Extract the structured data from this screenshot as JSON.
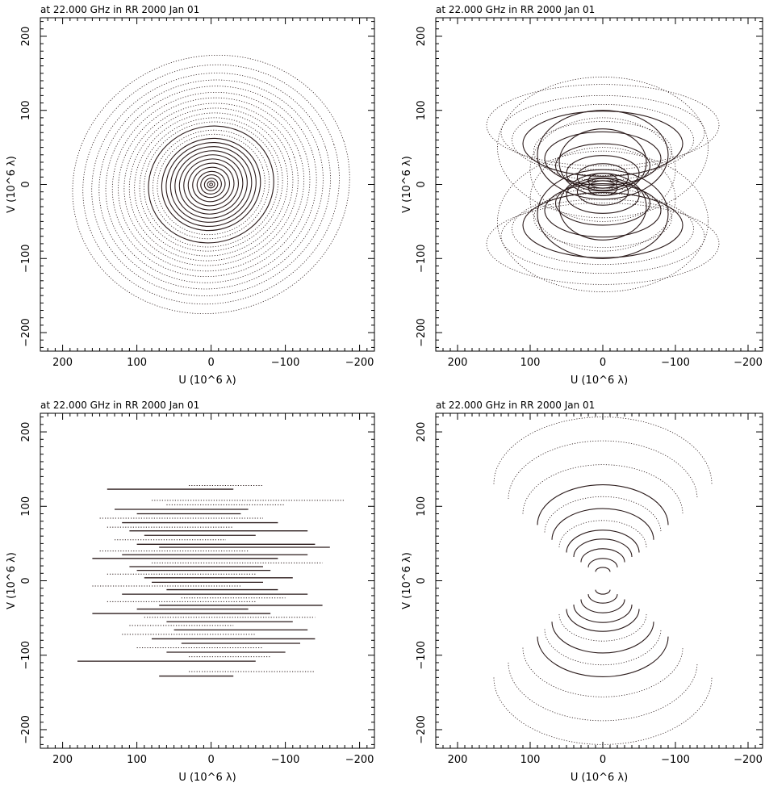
{
  "chart_data": [
    {
      "type": "scatter",
      "title": "at 22.000 GHz in RR  2000 Jan 01",
      "xlabel": "U (10^6 λ)",
      "ylabel": "V (10^6 λ)",
      "xlim": [
        230,
        -220
      ],
      "ylim": [
        -225,
        225
      ],
      "xticks": [
        200,
        100,
        0,
        -100,
        -200
      ],
      "yticks": [
        200,
        100,
        0,
        -100,
        -200
      ],
      "pattern": "Concentric elliptical uv-tracks, tilted",
      "shape": "ellipse",
      "ellipse_axes_ratio": 0.92,
      "tilt_deg": 18,
      "tracks": [
        {
          "r": 2,
          "style": "solid"
        },
        {
          "r": 5,
          "style": "solid"
        },
        {
          "r": 9,
          "style": "solid"
        },
        {
          "r": 14,
          "style": "solid"
        },
        {
          "r": 19,
          "style": "solid"
        },
        {
          "r": 25,
          "style": "solid"
        },
        {
          "r": 31,
          "style": "solid"
        },
        {
          "r": 37,
          "style": "solid"
        },
        {
          "r": 43,
          "style": "solid"
        },
        {
          "r": 49,
          "style": "solid"
        },
        {
          "r": 55,
          "style": "solid"
        },
        {
          "r": 61,
          "style": "solid"
        },
        {
          "r": 67,
          "style": "solid"
        },
        {
          "r": 73,
          "style": "dotted"
        },
        {
          "r": 79,
          "style": "dotted"
        },
        {
          "r": 85,
          "style": "solid"
        },
        {
          "r": 91,
          "style": "dotted"
        },
        {
          "r": 97,
          "style": "dotted"
        },
        {
          "r": 104,
          "style": "dotted"
        },
        {
          "r": 111,
          "style": "dotted"
        },
        {
          "r": 118,
          "style": "dotted"
        },
        {
          "r": 126,
          "style": "dotted"
        },
        {
          "r": 134,
          "style": "dotted"
        },
        {
          "r": 143,
          "style": "dotted"
        },
        {
          "r": 152,
          "style": "dotted"
        },
        {
          "r": 162,
          "style": "dotted"
        },
        {
          "r": 174,
          "style": "dotted"
        },
        {
          "r": 188,
          "style": "dotted"
        }
      ]
    },
    {
      "type": "scatter",
      "title": "at 22.000 GHz in RR  2000 Jan 01",
      "xlabel": "U (10^6 λ)",
      "ylabel": "V (10^6 λ)",
      "xlim": [
        230,
        -220
      ],
      "ylim": [
        -225,
        225
      ],
      "xticks": [
        200,
        100,
        0,
        -100,
        -200
      ],
      "yticks": [
        200,
        100,
        0,
        -100,
        -200
      ],
      "pattern": "Offset elliptical uv-tracks (two families above and below origin)",
      "shape": "offset-ellipse",
      "tracks": [
        {
          "a": 20,
          "b": 10,
          "v0": 5,
          "style": "solid"
        },
        {
          "a": 35,
          "b": 18,
          "v0": 10,
          "style": "solid"
        },
        {
          "a": 50,
          "b": 24,
          "v0": 15,
          "style": "solid"
        },
        {
          "a": 65,
          "b": 30,
          "v0": 25,
          "style": "solid"
        },
        {
          "a": 80,
          "b": 36,
          "v0": 35,
          "style": "solid"
        },
        {
          "a": 95,
          "b": 40,
          "v0": 45,
          "style": "dotted"
        },
        {
          "a": 110,
          "b": 44,
          "v0": 55,
          "style": "solid"
        },
        {
          "a": 125,
          "b": 48,
          "v0": 60,
          "style": "dotted"
        },
        {
          "a": 140,
          "b": 50,
          "v0": 70,
          "style": "dotted"
        },
        {
          "a": 160,
          "b": 55,
          "v0": 80,
          "style": "dotted"
        },
        {
          "a": 60,
          "b": 45,
          "v0": 30,
          "style": "solid"
        },
        {
          "a": 90,
          "b": 60,
          "v0": 40,
          "style": "solid"
        },
        {
          "a": 100,
          "b": 70,
          "v0": 20,
          "style": "dotted"
        },
        {
          "a": 145,
          "b": 95,
          "v0": 50,
          "style": "dotted"
        }
      ]
    },
    {
      "type": "scatter",
      "title": "at 22.000 GHz in RR  2000 Jan 01",
      "xlabel": "U (10^6 λ)",
      "ylabel": "V (10^6 λ)",
      "xlim": [
        230,
        -220
      ],
      "ylim": [
        -225,
        225
      ],
      "xticks": [
        200,
        100,
        0,
        -100,
        -200
      ],
      "yticks": [
        200,
        100,
        0,
        -100,
        -200
      ],
      "pattern": "Horizontal uv-tracks",
      "shape": "hline",
      "tracks": [
        {
          "v": 128,
          "u1": 30,
          "u2": -70,
          "style": "dotted"
        },
        {
          "v": 123,
          "u1": 140,
          "u2": -30,
          "style": "solid"
        },
        {
          "v": 108,
          "u1": 80,
          "u2": -180,
          "style": "dotted"
        },
        {
          "v": 102,
          "u1": 60,
          "u2": -100,
          "style": "dotted"
        },
        {
          "v": 96,
          "u1": 130,
          "u2": -50,
          "style": "solid"
        },
        {
          "v": 90,
          "u1": 100,
          "u2": -40,
          "style": "solid"
        },
        {
          "v": 84,
          "u1": 150,
          "u2": -70,
          "style": "dotted"
        },
        {
          "v": 78,
          "u1": 120,
          "u2": -90,
          "style": "solid"
        },
        {
          "v": 72,
          "u1": 140,
          "u2": -30,
          "style": "dotted"
        },
        {
          "v": 67,
          "u1": 110,
          "u2": -130,
          "style": "solid"
        },
        {
          "v": 61,
          "u1": 90,
          "u2": -60,
          "style": "solid"
        },
        {
          "v": 55,
          "u1": 130,
          "u2": -20,
          "style": "dotted"
        },
        {
          "v": 49,
          "u1": 100,
          "u2": -140,
          "style": "solid"
        },
        {
          "v": 45,
          "u1": 70,
          "u2": -160,
          "style": "solid"
        },
        {
          "v": 40,
          "u1": 150,
          "u2": -50,
          "style": "dotted"
        },
        {
          "v": 35,
          "u1": 120,
          "u2": -130,
          "style": "solid"
        },
        {
          "v": 30,
          "u1": 160,
          "u2": -90,
          "style": "solid"
        },
        {
          "v": 24,
          "u1": 80,
          "u2": -150,
          "style": "dotted"
        },
        {
          "v": 19,
          "u1": 110,
          "u2": -70,
          "style": "solid"
        },
        {
          "v": 14,
          "u1": 100,
          "u2": -80,
          "style": "solid"
        },
        {
          "v": 9,
          "u1": 140,
          "u2": -60,
          "style": "dotted"
        },
        {
          "v": 4,
          "u1": 90,
          "u2": -110,
          "style": "solid"
        },
        {
          "v": -2,
          "u1": 80,
          "u2": -70,
          "style": "solid"
        },
        {
          "v": -7,
          "u1": 160,
          "u2": -40,
          "style": "dotted"
        },
        {
          "v": -12,
          "u1": 60,
          "u2": -90,
          "style": "solid"
        },
        {
          "v": -18,
          "u1": 120,
          "u2": -130,
          "style": "solid"
        },
        {
          "v": -23,
          "u1": 40,
          "u2": -100,
          "style": "dotted"
        },
        {
          "v": -28,
          "u1": 140,
          "u2": -60,
          "style": "dotted"
        },
        {
          "v": -33,
          "u1": 70,
          "u2": -150,
          "style": "solid"
        },
        {
          "v": -38,
          "u1": 100,
          "u2": -50,
          "style": "solid"
        },
        {
          "v": -44,
          "u1": 160,
          "u2": -80,
          "style": "solid"
        },
        {
          "v": -49,
          "u1": 90,
          "u2": -140,
          "style": "dotted"
        },
        {
          "v": -55,
          "u1": 60,
          "u2": -110,
          "style": "solid"
        },
        {
          "v": -60,
          "u1": 110,
          "u2": -30,
          "style": "dotted"
        },
        {
          "v": -66,
          "u1": 50,
          "u2": -130,
          "style": "solid"
        },
        {
          "v": -72,
          "u1": 120,
          "u2": -60,
          "style": "dotted"
        },
        {
          "v": -78,
          "u1": 80,
          "u2": -140,
          "style": "solid"
        },
        {
          "v": -84,
          "u1": 40,
          "u2": -120,
          "style": "solid"
        },
        {
          "v": -90,
          "u1": 100,
          "u2": -70,
          "style": "dotted"
        },
        {
          "v": -96,
          "u1": 60,
          "u2": -100,
          "style": "solid"
        },
        {
          "v": -102,
          "u1": 30,
          "u2": -80,
          "style": "dotted"
        },
        {
          "v": -108,
          "u1": 180,
          "u2": -60,
          "style": "solid"
        },
        {
          "v": -122,
          "u1": 30,
          "u2": -140,
          "style": "dotted"
        },
        {
          "v": -128,
          "u1": 70,
          "u2": -30,
          "style": "solid"
        }
      ]
    },
    {
      "type": "scatter",
      "title": "at 22.000 GHz in RR  2000 Jan 01",
      "xlabel": "U (10^6 λ)",
      "ylabel": "V (10^6 λ)",
      "xlim": [
        230,
        -220
      ],
      "ylim": [
        -225,
        225
      ],
      "xticks": [
        200,
        100,
        0,
        -100,
        -200
      ],
      "yticks": [
        200,
        100,
        0,
        -100,
        -200
      ],
      "pattern": "Partial arc uv-tracks (upper and lower families)",
      "shape": "arc",
      "tracks": [
        {
          "a": 10,
          "b": 6,
          "v0": 12,
          "style": "solid"
        },
        {
          "a": 20,
          "b": 12,
          "v0": 18,
          "style": "solid"
        },
        {
          "a": 30,
          "b": 18,
          "v0": 25,
          "style": "solid"
        },
        {
          "a": 40,
          "b": 24,
          "v0": 32,
          "style": "solid"
        },
        {
          "a": 50,
          "b": 30,
          "v0": 38,
          "style": "solid"
        },
        {
          "a": 60,
          "b": 36,
          "v0": 45,
          "style": "dotted"
        },
        {
          "a": 70,
          "b": 42,
          "v0": 55,
          "style": "solid"
        },
        {
          "a": 80,
          "b": 48,
          "v0": 65,
          "style": "dotted"
        },
        {
          "a": 90,
          "b": 54,
          "v0": 75,
          "style": "solid"
        },
        {
          "a": 110,
          "b": 66,
          "v0": 90,
          "style": "dotted"
        },
        {
          "a": 130,
          "b": 78,
          "v0": 110,
          "style": "dotted"
        },
        {
          "a": 150,
          "b": 90,
          "v0": 130,
          "style": "dotted"
        }
      ]
    }
  ]
}
